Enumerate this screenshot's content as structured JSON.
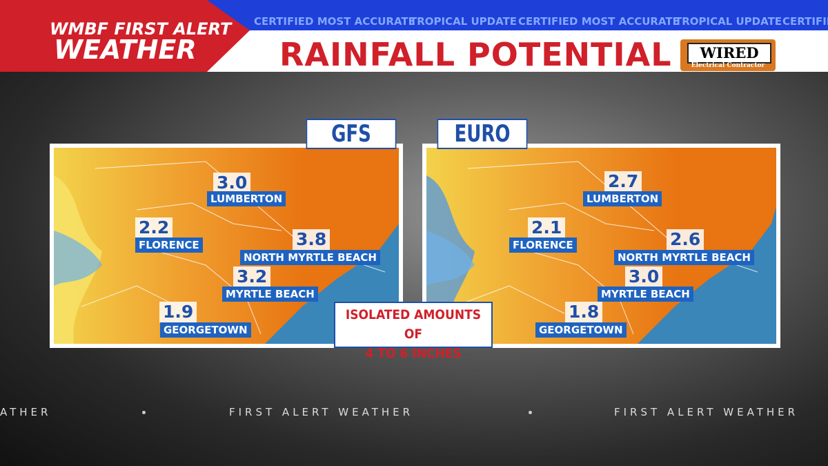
{
  "header": {
    "brand_line1": "WMBF FIRST ALERT",
    "brand_line2": "WEATHER",
    "title": "RAINFALL POTENTIAL",
    "sponsor": "WIRED",
    "sponsor_tagline": "Electrical Contractor"
  },
  "ticker": [
    "CERTIFIED MOST ACCURATE",
    "TROPICAL UPDATE",
    "CERTIFIED MOST ACCURATE",
    "TROPICAL UPDATE",
    "CERTIFIE"
  ],
  "maps": [
    {
      "model": "GFS",
      "locations": [
        {
          "name": "LUMBERTON",
          "value": "3.0"
        },
        {
          "name": "FLORENCE",
          "value": "2.2"
        },
        {
          "name": "NORTH MYRTLE BEACH",
          "value": "3.8"
        },
        {
          "name": "MYRTLE BEACH",
          "value": "3.2"
        },
        {
          "name": "GEORGETOWN",
          "value": "1.9"
        }
      ]
    },
    {
      "model": "EURO",
      "locations": [
        {
          "name": "LUMBERTON",
          "value": "2.7"
        },
        {
          "name": "FLORENCE",
          "value": "2.1"
        },
        {
          "name": "NORTH MYRTLE BEACH",
          "value": "2.6"
        },
        {
          "name": "MYRTLE BEACH",
          "value": "3.0"
        },
        {
          "name": "GEORGETOWN",
          "value": "1.8"
        }
      ]
    }
  ],
  "note": [
    "ISOLATED AMOUNTS OF",
    "4 TO 6 INCHES"
  ],
  "footer": [
    "ATHER",
    "FIRST ALERT WEATHER",
    "FIRST ALERT WEATHER"
  ]
}
